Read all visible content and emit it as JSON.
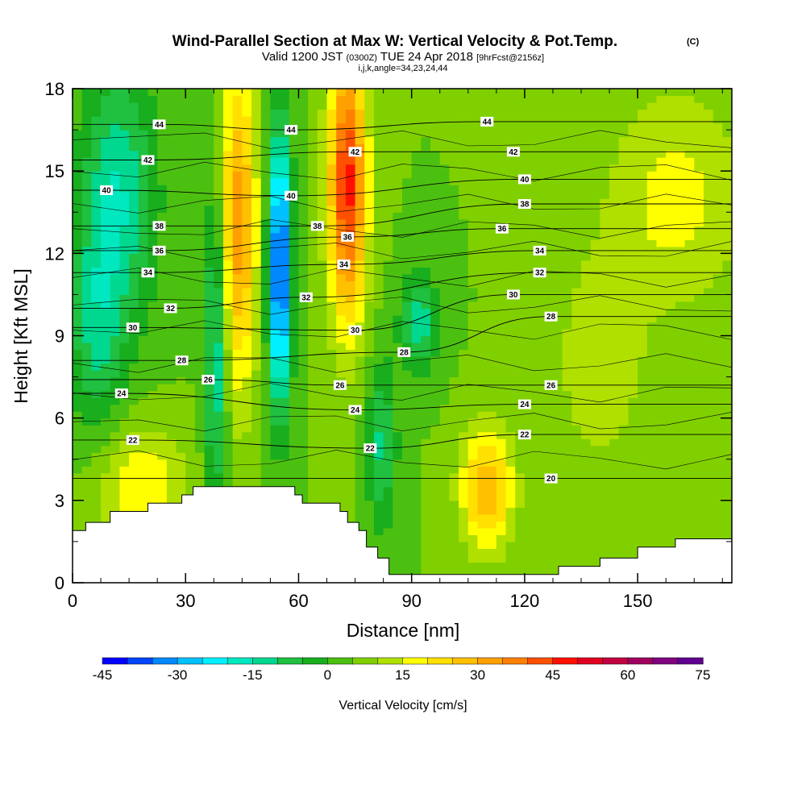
{
  "header": {
    "title_main": "Wind-Parallel Section at Max W: Vertical Velocity & Pot.Temp.",
    "title_copyright": "(C)",
    "subtitle_a": "Valid 1200 JST",
    "subtitle_b": "(0300Z)",
    "subtitle_c": "TUE 24 Apr 2018",
    "subtitle_d": "[9hrFcst@2156z]",
    "subtitle_line2": "i,j,k,angle=34,23,24,44"
  },
  "chart_data": {
    "type": "heatmap",
    "title": "Wind-Parallel Section at Max W: Vertical Velocity & Pot.Temp.",
    "xlabel": "Distance [nm]",
    "ylabel": "Height [Kft MSL]",
    "xlim": [
      0,
      175
    ],
    "ylim": [
      0,
      18
    ],
    "xticks": [
      0,
      30,
      60,
      90,
      120,
      150
    ],
    "yticks": [
      0,
      3,
      6,
      9,
      12,
      15,
      18
    ],
    "colorbar": {
      "label": "Vertical Velocity [cm/s]",
      "min": -45,
      "max": 75,
      "step": 5,
      "tick_values": [
        -45,
        -30,
        -15,
        0,
        15,
        30,
        45,
        60,
        75
      ],
      "tick_labels": [
        "-45",
        "-30",
        "-15",
        "0",
        "15",
        "30",
        "45",
        "60",
        "75"
      ],
      "colors": [
        "#0000ff",
        "#0044ff",
        "#0088ff",
        "#00c0ff",
        "#00f0ff",
        "#00e8c0",
        "#00d890",
        "#20c040",
        "#19ae1e",
        "#4cc010",
        "#80d000",
        "#b0e000",
        "#ffff00",
        "#ffe000",
        "#ffc000",
        "#ffa000",
        "#ff8000",
        "#ff5000",
        "#ff1000",
        "#e00020",
        "#c00040",
        "#a00060",
        "#800080",
        "#600090"
      ]
    },
    "vertical_velocity_field": {
      "background": 5,
      "features": [
        {
          "x": 12,
          "y": 14,
          "sx": 10,
          "sy": 5,
          "value": -20
        },
        {
          "x": 6,
          "y": 9,
          "sx": 7,
          "sy": 4,
          "value": -13
        },
        {
          "x": 38,
          "y": 8.5,
          "sx": 3,
          "sy": 6,
          "value": -22
        },
        {
          "x": 44,
          "y": 13,
          "sx": 5,
          "sy": 6,
          "value": 28
        },
        {
          "x": 55,
          "y": 11.5,
          "sx": 3,
          "sy": 5,
          "value": -45
        },
        {
          "x": 73,
          "y": 14.5,
          "sx": 5,
          "sy": 5,
          "value": 42
        },
        {
          "x": 82,
          "y": 5,
          "sx": 4,
          "sy": 3,
          "value": -16
        },
        {
          "x": 92,
          "y": 9.5,
          "sx": 5,
          "sy": 1.8,
          "value": -18
        },
        {
          "x": 110,
          "y": 3.4,
          "sx": 7,
          "sy": 2.2,
          "value": 25
        },
        {
          "x": 18,
          "y": 3.5,
          "sx": 12,
          "sy": 2.2,
          "value": 15
        },
        {
          "x": 160,
          "y": 14,
          "sx": 18,
          "sy": 4,
          "value": 12
        },
        {
          "x": 140,
          "y": 8,
          "sx": 12,
          "sy": 4,
          "value": 9
        }
      ]
    },
    "potential_temperature_labels": [
      {
        "x": 23,
        "y": 16.7,
        "value": "44"
      },
      {
        "x": 20,
        "y": 15.4,
        "value": "42"
      },
      {
        "x": 9,
        "y": 14.3,
        "value": "40"
      },
      {
        "x": 23,
        "y": 13.0,
        "value": "38"
      },
      {
        "x": 23,
        "y": 12.1,
        "value": "36"
      },
      {
        "x": 20,
        "y": 11.3,
        "value": "34"
      },
      {
        "x": 26,
        "y": 10.0,
        "value": "32"
      },
      {
        "x": 16,
        "y": 9.3,
        "value": "30"
      },
      {
        "x": 29,
        "y": 8.1,
        "value": "28"
      },
      {
        "x": 36,
        "y": 7.4,
        "value": "26"
      },
      {
        "x": 13,
        "y": 6.9,
        "value": "24"
      },
      {
        "x": 16,
        "y": 5.2,
        "value": "22"
      },
      {
        "x": 58,
        "y": 16.5,
        "value": "44"
      },
      {
        "x": 58,
        "y": 14.1,
        "value": "40"
      },
      {
        "x": 65,
        "y": 13.0,
        "value": "38"
      },
      {
        "x": 62,
        "y": 10.4,
        "value": "32"
      },
      {
        "x": 75,
        "y": 15.7,
        "value": "42"
      },
      {
        "x": 73,
        "y": 12.6,
        "value": "36"
      },
      {
        "x": 72,
        "y": 11.6,
        "value": "34"
      },
      {
        "x": 75,
        "y": 9.2,
        "value": "30"
      },
      {
        "x": 88,
        "y": 8.4,
        "value": "28"
      },
      {
        "x": 71,
        "y": 7.2,
        "value": "26"
      },
      {
        "x": 75,
        "y": 6.3,
        "value": "24"
      },
      {
        "x": 79,
        "y": 4.9,
        "value": "22"
      },
      {
        "x": 110,
        "y": 16.8,
        "value": "44"
      },
      {
        "x": 117,
        "y": 15.7,
        "value": "42"
      },
      {
        "x": 120,
        "y": 14.7,
        "value": "40"
      },
      {
        "x": 120,
        "y": 13.8,
        "value": "38"
      },
      {
        "x": 114,
        "y": 12.9,
        "value": "36"
      },
      {
        "x": 124,
        "y": 12.1,
        "value": "34"
      },
      {
        "x": 124,
        "y": 11.3,
        "value": "32"
      },
      {
        "x": 117,
        "y": 10.5,
        "value": "30"
      },
      {
        "x": 127,
        "y": 9.7,
        "value": "28"
      },
      {
        "x": 127,
        "y": 7.2,
        "value": "26"
      },
      {
        "x": 120,
        "y": 6.5,
        "value": "24"
      },
      {
        "x": 120,
        "y": 5.4,
        "value": "22"
      },
      {
        "x": 127,
        "y": 3.8,
        "value": "20"
      }
    ],
    "terrain_profile": [
      [
        0,
        1.9
      ],
      [
        3.5,
        1.9
      ],
      [
        3.5,
        2.2
      ],
      [
        10,
        2.2
      ],
      [
        10,
        2.6
      ],
      [
        20,
        2.6
      ],
      [
        20,
        2.9
      ],
      [
        29,
        2.9
      ],
      [
        29,
        3.2
      ],
      [
        32,
        3.2
      ],
      [
        32,
        3.5
      ],
      [
        59,
        3.5
      ],
      [
        59,
        3.2
      ],
      [
        61,
        3.2
      ],
      [
        61,
        2.9
      ],
      [
        71,
        2.9
      ],
      [
        71,
        2.6
      ],
      [
        73,
        2.6
      ],
      [
        73,
        2.2
      ],
      [
        76,
        2.2
      ],
      [
        76,
        1.9
      ],
      [
        78,
        1.9
      ],
      [
        78,
        1.3
      ],
      [
        81,
        1.3
      ],
      [
        81,
        0.9
      ],
      [
        84,
        0.9
      ],
      [
        84,
        0.3
      ],
      [
        129,
        0.3
      ],
      [
        129,
        0.6
      ],
      [
        140,
        0.6
      ],
      [
        140,
        0.9
      ],
      [
        150,
        0.9
      ],
      [
        150,
        1.3
      ],
      [
        160,
        1.3
      ],
      [
        160,
        1.6
      ],
      [
        175,
        1.6
      ]
    ]
  }
}
